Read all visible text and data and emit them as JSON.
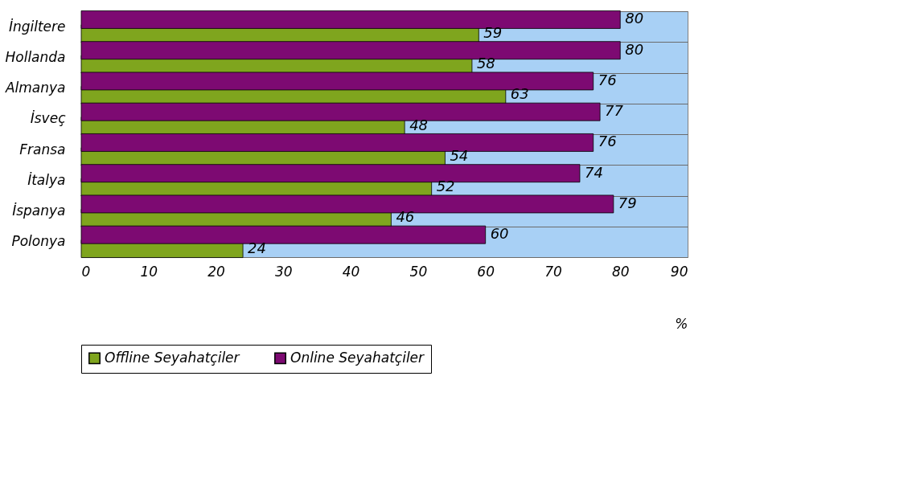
{
  "chart_data": {
    "type": "bar",
    "orientation": "horizontal",
    "categories": [
      "İngiltere",
      "Hollanda",
      "Almanya",
      "İsveç",
      "Fransa",
      "İtalya",
      "İspanya",
      "Polonya"
    ],
    "series": [
      {
        "name": "Offline Seyahatçiler",
        "color": "#7fa51e",
        "values": [
          59,
          58,
          63,
          48,
          54,
          52,
          46,
          24
        ]
      },
      {
        "name": "Online Seyahatçiler",
        "color": "#7d0a72",
        "values": [
          80,
          80,
          76,
          77,
          76,
          74,
          79,
          60
        ]
      }
    ],
    "xlim": [
      0,
      90
    ],
    "xticks": [
      0,
      10,
      20,
      30,
      40,
      50,
      60,
      70,
      80,
      90
    ],
    "xlabel": "%",
    "data_labels": true,
    "grid": "y",
    "legend": "bottom"
  }
}
